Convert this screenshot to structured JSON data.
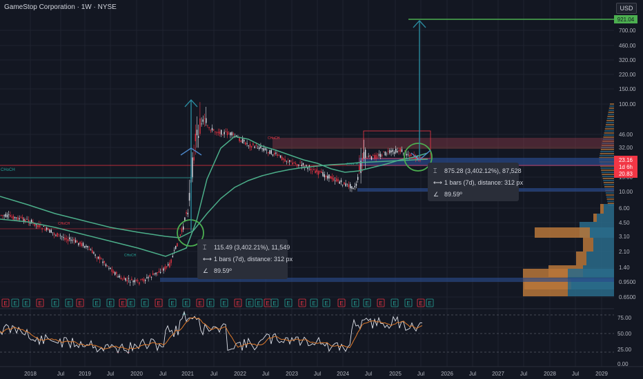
{
  "header": {
    "title": "GameStop Corporation · 1W · NYSE",
    "currency": "USD"
  },
  "price_axis": {
    "ticks": [
      "700.00",
      "460.00",
      "320.00",
      "220.00",
      "150.00",
      "100.00",
      "46.00",
      "32.00",
      "15.00",
      "10.00",
      "6.00",
      "4.50",
      "3.10",
      "2.10",
      "1.40",
      "0.9500",
      "0.6500"
    ],
    "target_badge": "921.04",
    "price_badge": "23.16",
    "countdown_badge": "1d 6h",
    "low_badge": "20.83"
  },
  "time_axis": {
    "labels": [
      "2018",
      "Jul",
      "2019",
      "Jul",
      "2020",
      "Jul",
      "2021",
      "Jul",
      "2022",
      "Jul",
      "2023",
      "Jul",
      "2024",
      "Jul",
      "2025",
      "Jul",
      "2026",
      "Jul",
      "2027",
      "Jul",
      "2028",
      "Jul",
      "2029"
    ]
  },
  "rsi_axis": {
    "ticks": [
      "75.00",
      "50.00",
      "25.00",
      "0.00"
    ]
  },
  "measure_boxes": {
    "first": {
      "row1": "115.49 (3,402.21%), 11,549",
      "row2": "1 bars (7d), distance: 312 px",
      "row3": "89.59º"
    },
    "second": {
      "row1": "875.28 (3,402.12%), 87,528",
      "row2": "1 bars (7d), distance: 312 px",
      "row3": "89.59º"
    }
  },
  "annotations": {
    "choch": "CHoCH",
    "earnings_marker": "E"
  },
  "colors": {
    "background": "#131722",
    "ma": "#4caf8a",
    "target": "#4caf50",
    "arrow": "#2a8a9e",
    "price_red": "#f23645",
    "rsi_white": "#e0e3eb",
    "rsi_orange": "#e07b2c"
  }
}
